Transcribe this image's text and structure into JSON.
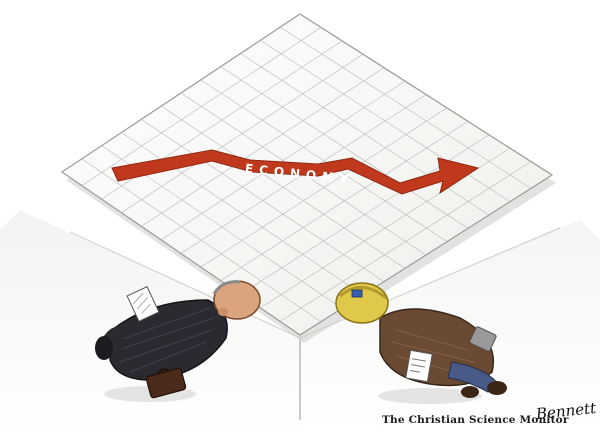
{
  "cartoon": {
    "chart_label": "ECONOMY",
    "publisher_credit": "The Christian Science Monitor",
    "artist_signature": "Bennett",
    "colors": {
      "arrow": "#c0391c",
      "paper": "#f7f7f4",
      "grid": "#b8b8b8",
      "ceiling_shadow": "#e6e6e4",
      "suit": "#2a2a30",
      "work_jacket": "#6b4a34",
      "hard_hat": "#e0c94a"
    }
  }
}
